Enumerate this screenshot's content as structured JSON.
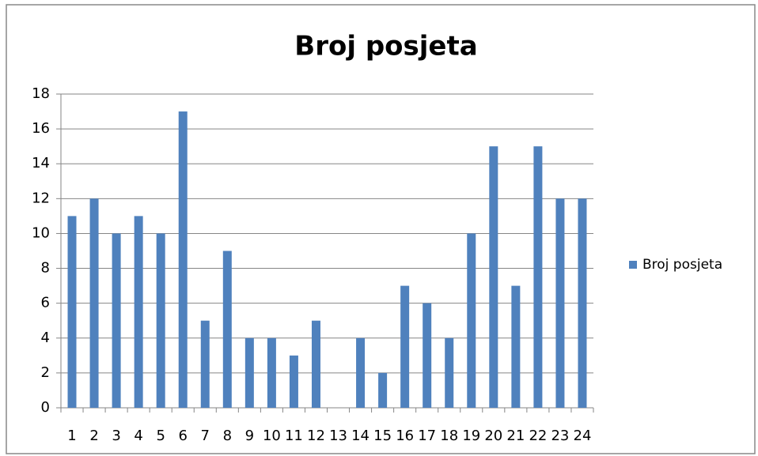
{
  "chart_data": {
    "type": "bar",
    "title": "Broj posjeta",
    "categories": [
      "1",
      "2",
      "3",
      "4",
      "5",
      "6",
      "7",
      "8",
      "9",
      "10",
      "11",
      "12",
      "13",
      "14",
      "15",
      "16",
      "17",
      "18",
      "19",
      "20",
      "21",
      "22",
      "23",
      "24"
    ],
    "series": [
      {
        "name": "Broj posjeta",
        "color": "#4f81bd",
        "values": [
          11,
          12,
          10,
          11,
          10,
          17,
          5,
          9,
          4,
          4,
          3,
          5,
          0,
          4,
          2,
          7,
          6,
          4,
          10,
          15,
          7,
          15,
          12,
          12
        ]
      }
    ],
    "ylim": [
      0,
      18
    ],
    "yticks": [
      0,
      2,
      4,
      6,
      8,
      10,
      12,
      14,
      16,
      18
    ],
    "grid": true,
    "legend": "right"
  }
}
